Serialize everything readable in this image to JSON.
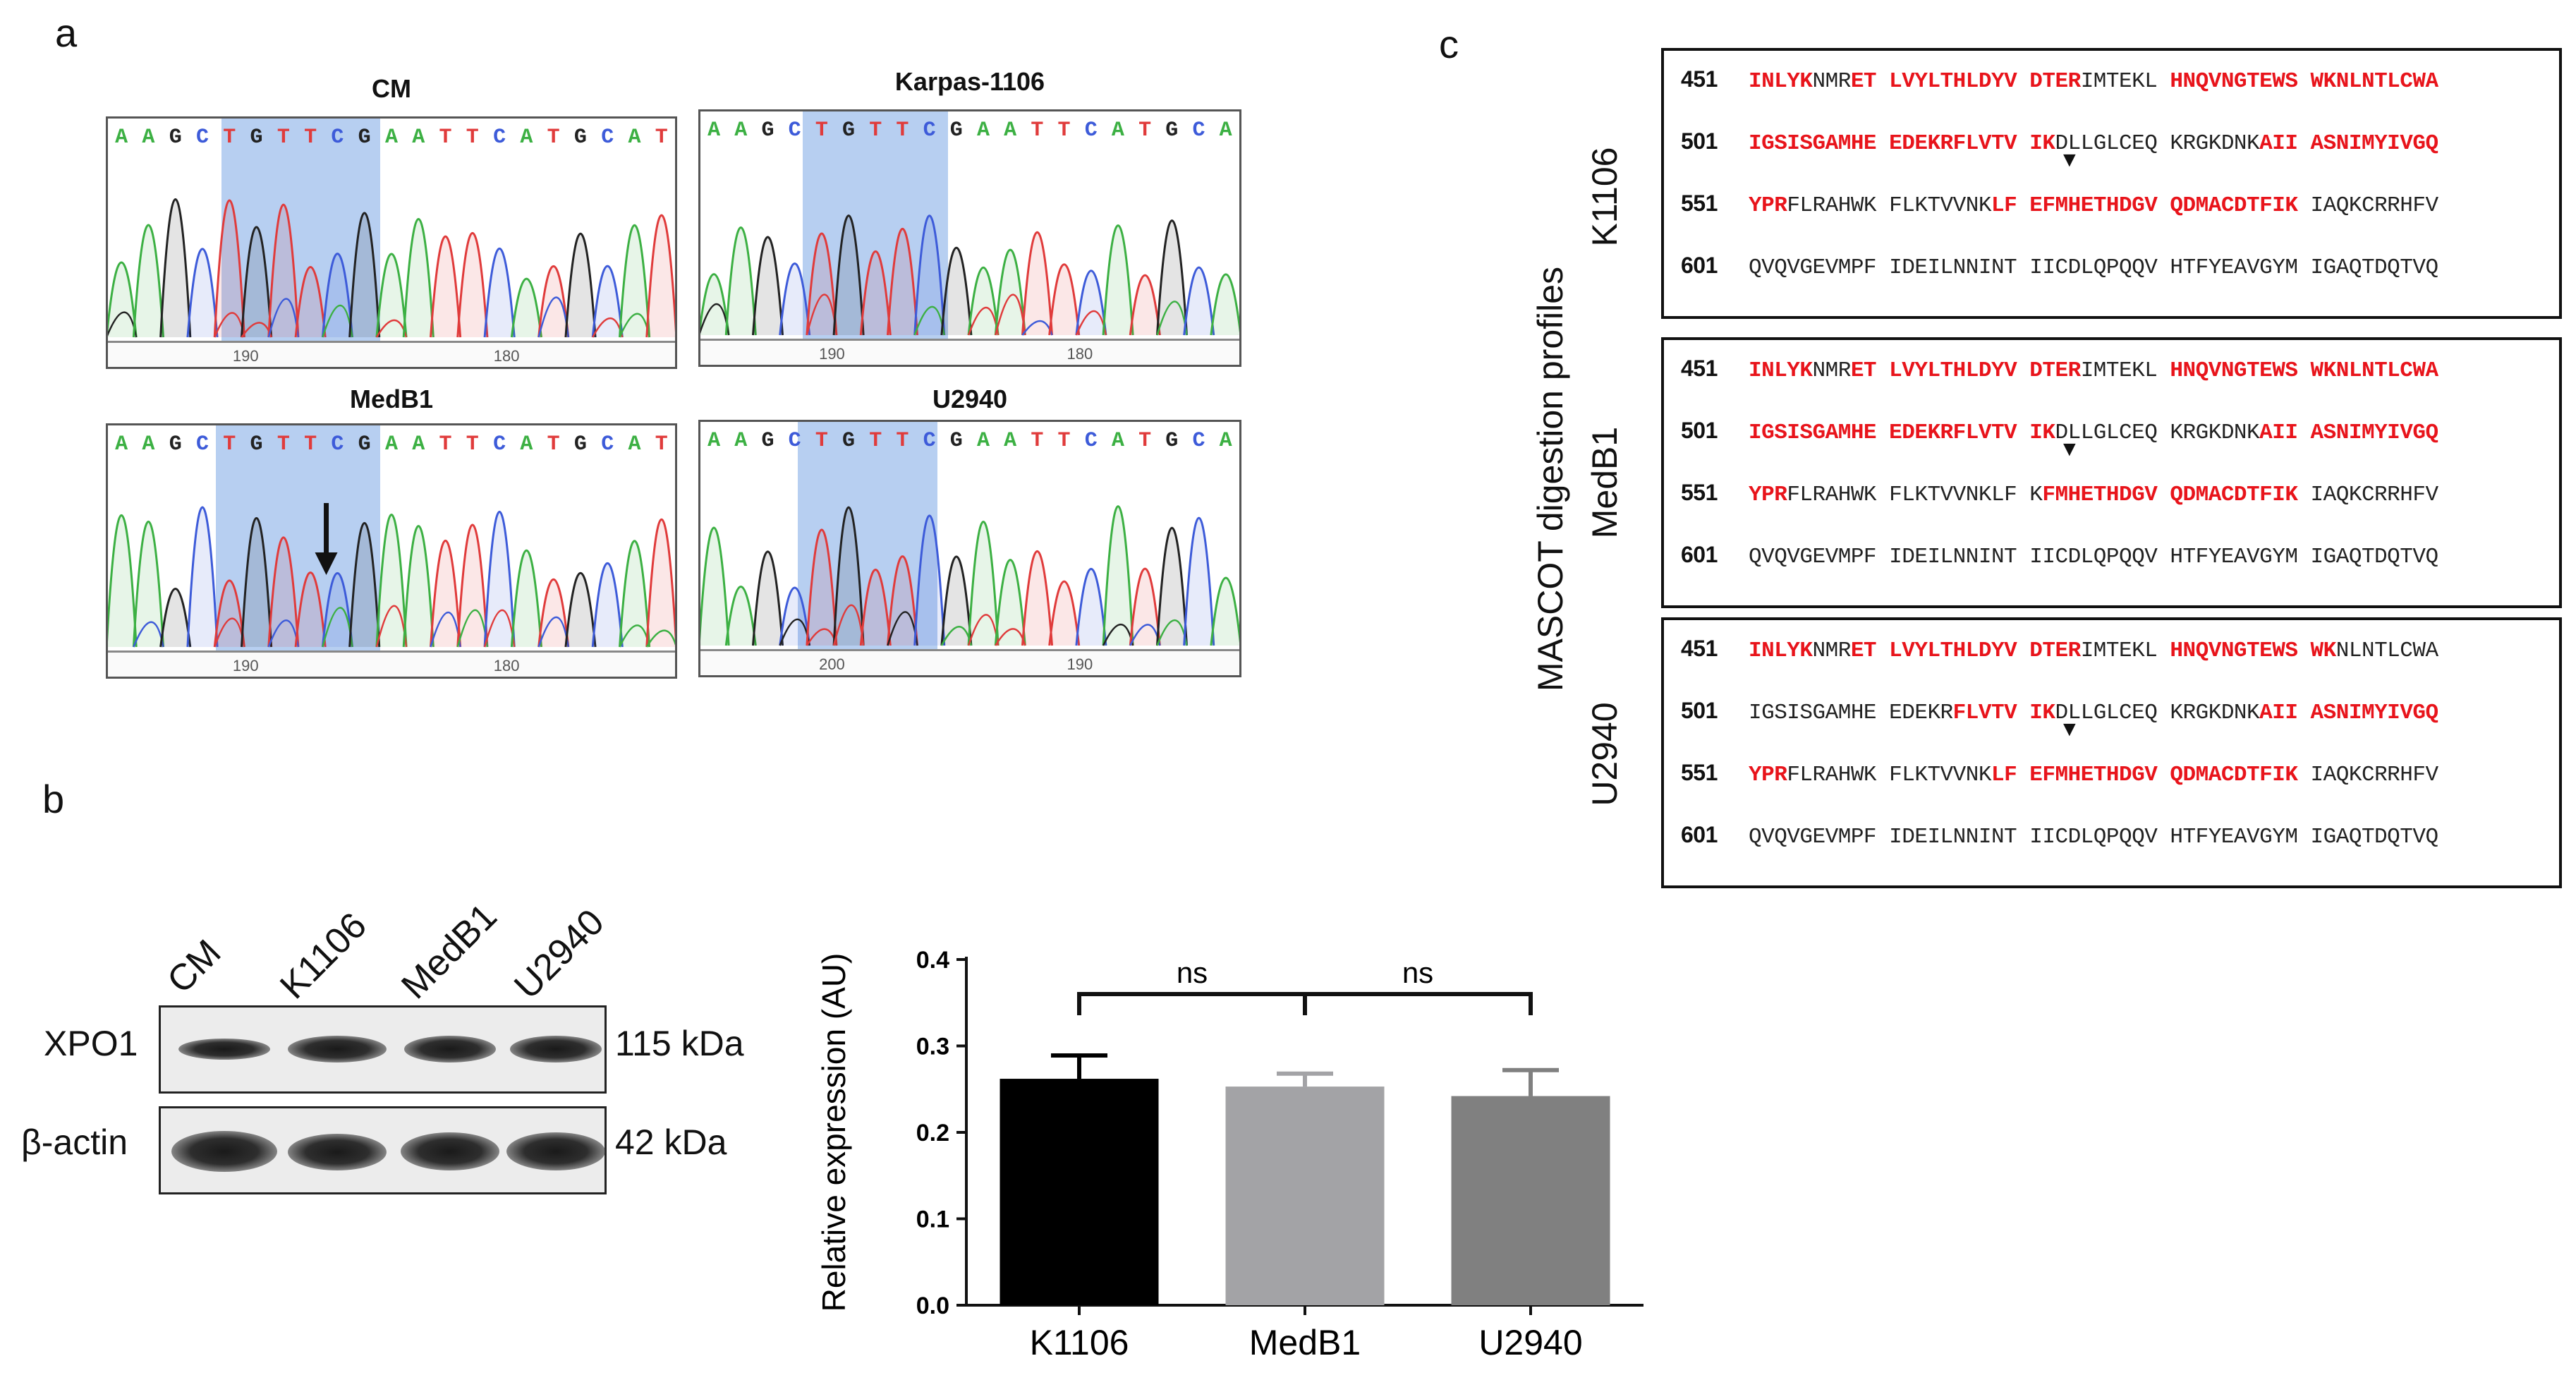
{
  "panels": {
    "a": "a",
    "b": "b",
    "c": "c"
  },
  "panel_a": {
    "chromatograms": [
      {
        "title": "CM",
        "bases": "AAGCTGTTCGAATTCATGCAT",
        "ticks": [
          "190",
          "180"
        ],
        "arrow": false
      },
      {
        "title": "Karpas-1106",
        "bases": "AAGCTGTTCGAATTCATGCA",
        "ticks": [
          "190",
          "180"
        ],
        "arrow": false
      },
      {
        "title": "MedB1",
        "bases": "AAGCTGTTCGAATTCATGCAT",
        "ticks": [
          "190",
          "180"
        ],
        "arrow": true
      },
      {
        "title": "U2940",
        "bases": "AAGCTGTTCGAATTCATGCA",
        "ticks": [
          "200",
          "190"
        ],
        "arrow": false
      }
    ]
  },
  "panel_b": {
    "lanes": [
      "CM",
      "K1106",
      "MedB1",
      "U2940"
    ],
    "rows": [
      {
        "protein": "XPO1",
        "size": "115 kDa"
      },
      {
        "protein": "β-actin",
        "size": "42 kDa"
      }
    ]
  },
  "chart_data": {
    "type": "bar",
    "categories": [
      "K1106",
      "MedB1",
      "U2940"
    ],
    "values": [
      0.262,
      0.253,
      0.242
    ],
    "errors": [
      0.027,
      0.015,
      0.03
    ],
    "colors": [
      "#000000",
      "#a3a3a6",
      "#808080"
    ],
    "ylabel": "Relative expression (AU)",
    "ylim": [
      0.0,
      0.4
    ],
    "yticks": [
      "0.0",
      "0.1",
      "0.2",
      "0.3",
      "0.4"
    ],
    "significance": [
      {
        "from": 0,
        "to": 1,
        "label": "ns"
      },
      {
        "from": 1,
        "to": 2,
        "label": "ns"
      }
    ]
  },
  "panel_c": {
    "side_label": "MASCOT digestion profiles",
    "boxes": [
      {
        "cell": "K1106",
        "lines": [
          {
            "num": "451",
            "segs": [
              [
                "r",
                "INLYK"
              ],
              [
                "k",
                "NMR"
              ],
              [
                "r",
                "ET LVYLTHLDYV DTER"
              ],
              [
                "k",
                "IMTEKL "
              ],
              [
                "r",
                "HNQVNGTEWS WKNLNTLCWA"
              ]
            ]
          },
          {
            "num": "501",
            "segs": [
              [
                "r",
                "IGSISGAMHE EDEKRFLVTV IK"
              ],
              [
                "k",
                "DLLGLCEQ KRGKDNK"
              ],
              [
                "r",
                "AII ASNIMYIVGQ"
              ]
            ]
          },
          {
            "num": "551",
            "segs": [
              [
                "r",
                "YPR"
              ],
              [
                "k",
                "FLRAHWK FLKTVVNK"
              ],
              [
                "r",
                "LF EFMHETHDGV QDMACDTFIK"
              ],
              [
                "k",
                " IAQKCRRHFV"
              ]
            ]
          },
          {
            "num": "601",
            "segs": [
              [
                "k",
                "QVQVGEVMPF IDEILNNINT IICDLQPQQV HTFYEAVGYM IGAQTDQTVQ"
              ]
            ]
          }
        ]
      },
      {
        "cell": "MedB1",
        "lines": [
          {
            "num": "451",
            "segs": [
              [
                "r",
                "INLYK"
              ],
              [
                "k",
                "NMR"
              ],
              [
                "r",
                "ET LVYLTHLDYV DTER"
              ],
              [
                "k",
                "IMTEKL "
              ],
              [
                "r",
                "HNQVNGTEWS WKNLNTLCWA"
              ]
            ]
          },
          {
            "num": "501",
            "segs": [
              [
                "r",
                "IGSISGAMHE EDEKRFLVTV IK"
              ],
              [
                "k",
                "DLLGLCEQ KRGKDNK"
              ],
              [
                "r",
                "AII ASNIMYIVGQ"
              ]
            ]
          },
          {
            "num": "551",
            "segs": [
              [
                "r",
                "YPR"
              ],
              [
                "k",
                "FLRAHWK FLKTVVNKLF K"
              ],
              [
                "r",
                "FMHETHDGV QDMACDTFIK"
              ],
              [
                "k",
                " IAQKCRRHFV"
              ]
            ]
          },
          {
            "num": "601",
            "segs": [
              [
                "k",
                "QVQVGEVMPF IDEILNNINT IICDLQPQQV HTFYEAVGYM IGAQTDQTVQ"
              ]
            ]
          }
        ]
      },
      {
        "cell": "U2940",
        "lines": [
          {
            "num": "451",
            "segs": [
              [
                "r",
                "INLYK"
              ],
              [
                "k",
                "NMR"
              ],
              [
                "r",
                "ET LVYLTHLDYV DTER"
              ],
              [
                "k",
                "IMTEKL "
              ],
              [
                "r",
                "HNQVNGTEWS WK"
              ],
              [
                "k",
                "NLNTLCWA"
              ]
            ]
          },
          {
            "num": "501",
            "segs": [
              [
                "k",
                "IGSISGAMHE EDEKR"
              ],
              [
                "r",
                "FLVTV IK"
              ],
              [
                "k",
                "DLLGLCEQ KRGKDNK"
              ],
              [
                "r",
                "AII ASNIMYIVGQ"
              ]
            ]
          },
          {
            "num": "551",
            "segs": [
              [
                "r",
                "YPR"
              ],
              [
                "k",
                "FLRAHWK FLKTVVNK"
              ],
              [
                "r",
                "LF EFMHETHDGV QDMACDTFIK"
              ],
              [
                "k",
                " IAQKCRRHFV"
              ]
            ]
          },
          {
            "num": "601",
            "segs": [
              [
                "k",
                "QVQVGEVMPF IDEILNNINT IICDLQPQQV HTFYEAVGYM IGAQTDQTVQ"
              ]
            ]
          }
        ]
      }
    ]
  },
  "colors": {
    "red_highlight": "#e8141b",
    "blue_highlight": "#b7cff1"
  }
}
